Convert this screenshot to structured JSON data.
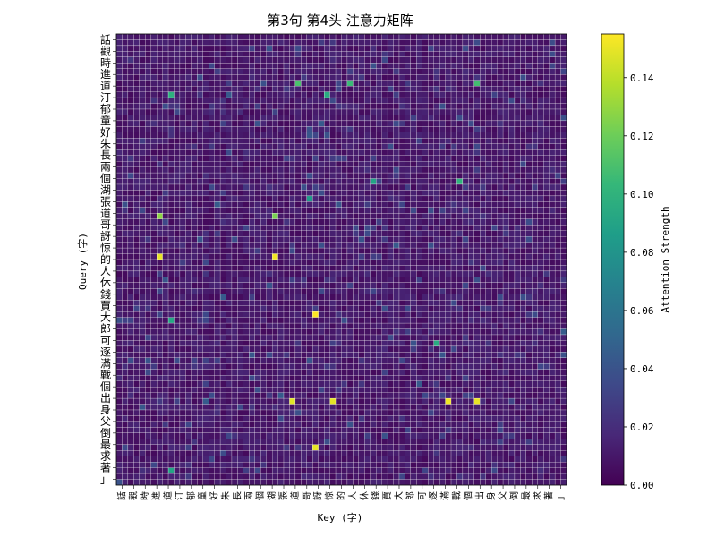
{
  "chart_data": {
    "type": "heatmap",
    "title": "第3句 第4头 注意力矩阵",
    "xlabel": "Key (字)",
    "ylabel": "Query (字)",
    "colorbar_label": "Attention Strength",
    "colorbar_ticks": [
      "0.00",
      "0.02",
      "0.04",
      "0.06",
      "0.08",
      "0.10",
      "0.12",
      "0.14"
    ],
    "colorbar_range": [
      0.0,
      0.155
    ],
    "colormap": [
      "#440154",
      "#482878",
      "#3e4989",
      "#31688e",
      "#26828e",
      "#1f9e89",
      "#35b779",
      "#6ece58",
      "#b5de2b",
      "#fde725"
    ],
    "query_tokens_visible": [
      "話",
      "觀",
      "時",
      "進",
      "道",
      "汀",
      "郁",
      "童",
      "好",
      "朱",
      "長",
      "兩",
      "個",
      "湖",
      "張",
      "道",
      "哥",
      "訝",
      "惊",
      "的",
      "人",
      "休",
      "錢",
      "賈",
      "大",
      "郎",
      "可",
      "逐",
      "滿",
      "戰",
      "個",
      "出",
      "身",
      "父",
      "倒",
      "最",
      "求",
      "著",
      "」"
    ],
    "key_tokens_visible": [
      "話",
      "觀",
      "時",
      "進",
      "道",
      "汀",
      "郁",
      "童",
      "好",
      "朱",
      "長",
      "兩",
      "個",
      "湖",
      "張",
      "道",
      "哥",
      "訝",
      "惊",
      "的",
      "人",
      "休",
      "錢",
      "賈",
      "大",
      "郎",
      "可",
      "逐",
      "滿",
      "戰",
      "個",
      "出",
      "身",
      "父",
      "倒",
      "最",
      "求",
      "著",
      "」"
    ],
    "matrix_size": 78,
    "value_scale": "attention weights 0.00–0.155, mostly 0.005–0.02, sparse peaks up to 0.155",
    "hotspots": [
      {
        "row": 38,
        "col": 7,
        "value": 0.15
      },
      {
        "row": 31,
        "col": 7,
        "value": 0.128
      },
      {
        "row": 38,
        "col": 27,
        "value": 0.152
      },
      {
        "row": 31,
        "col": 27,
        "value": 0.123
      },
      {
        "row": 48,
        "col": 34,
        "value": 0.155
      },
      {
        "row": 63,
        "col": 30,
        "value": 0.148
      },
      {
        "row": 63,
        "col": 37,
        "value": 0.149
      },
      {
        "row": 63,
        "col": 57,
        "value": 0.152
      },
      {
        "row": 63,
        "col": 62,
        "value": 0.15
      },
      {
        "row": 71,
        "col": 34,
        "value": 0.15
      },
      {
        "row": 8,
        "col": 31,
        "value": 0.11
      },
      {
        "row": 8,
        "col": 40,
        "value": 0.105
      },
      {
        "row": 8,
        "col": 62,
        "value": 0.108
      },
      {
        "row": 10,
        "col": 9,
        "value": 0.098
      },
      {
        "row": 10,
        "col": 36,
        "value": 0.095
      },
      {
        "row": 25,
        "col": 59,
        "value": 0.1
      },
      {
        "row": 25,
        "col": 44,
        "value": 0.09
      },
      {
        "row": 28,
        "col": 33,
        "value": 0.085
      },
      {
        "row": 49,
        "col": 9,
        "value": 0.092
      },
      {
        "row": 53,
        "col": 55,
        "value": 0.095
      },
      {
        "row": 75,
        "col": 9,
        "value": 0.09
      }
    ]
  }
}
